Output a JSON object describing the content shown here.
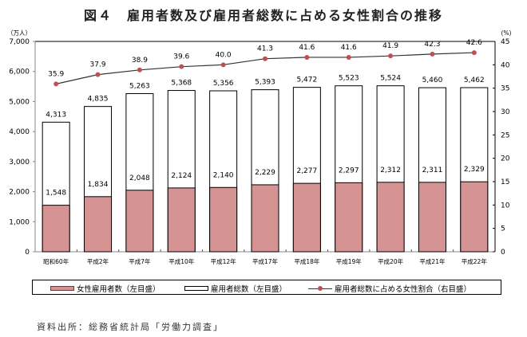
{
  "title": "図４　雇用者数及び雇用者総数に占める女性割合の推移",
  "source": "資料出所：総務省統計局「労働力調査」",
  "chart_data": {
    "type": "bar",
    "title": "図４　雇用者数及び雇用者総数に占める女性割合の推移",
    "categories": [
      "昭和60年",
      "平成2年",
      "平成7年",
      "平成10年",
      "平成12年",
      "平成17年",
      "平成18年",
      "平成19年",
      "平成20年",
      "平成21年",
      "平成22年"
    ],
    "series": [
      {
        "name": "女性雇用者数（左目盛）",
        "type": "bar",
        "axis": "left",
        "color": "#D69393",
        "values": [
          1548,
          1834,
          2048,
          2124,
          2140,
          2229,
          2277,
          2297,
          2312,
          2311,
          2329
        ],
        "labels": [
          "1,548",
          "1,834",
          "2,048",
          "2,124",
          "2,140",
          "2,229",
          "2,277",
          "2,297",
          "2,312",
          "2,311",
          "2,329"
        ]
      },
      {
        "name": "雇用者総数（左目盛）",
        "type": "bar",
        "axis": "left",
        "color": "#FFFFFF",
        "values": [
          4313,
          4835,
          5263,
          5368,
          5356,
          5393,
          5472,
          5523,
          5524,
          5460,
          5462
        ],
        "labels": [
          "4,313",
          "4,835",
          "5,263",
          "5,368",
          "5,356",
          "5,393",
          "5,472",
          "5,523",
          "5,524",
          "5,460",
          "5,462"
        ]
      },
      {
        "name": "雇用者総数に占める女性割合（右目盛）",
        "type": "line",
        "axis": "right",
        "color": "#C0504D",
        "values": [
          35.9,
          37.9,
          38.9,
          39.6,
          40.0,
          41.3,
          41.6,
          41.6,
          41.9,
          42.3,
          42.6
        ],
        "labels": [
          "35.9",
          "37.9",
          "38.9",
          "39.6",
          "40.0",
          "41.3",
          "41.6",
          "41.6",
          "41.9",
          "42.3",
          "42.6"
        ]
      }
    ],
    "y_left": {
      "unit": "（万人）",
      "range": [
        0,
        7000
      ],
      "ticks": [
        0,
        1000,
        2000,
        3000,
        4000,
        5000,
        6000,
        7000
      ],
      "tick_labels": [
        "0",
        "1,000",
        "2,000",
        "3,000",
        "4,000",
        "5,000",
        "6,000",
        "7,000"
      ]
    },
    "y_right": {
      "unit": "(%)",
      "range": [
        0,
        45
      ],
      "ticks": [
        0,
        5,
        10,
        15,
        20,
        25,
        30,
        35,
        40,
        45
      ],
      "tick_labels": [
        "0",
        "5",
        "10",
        "15",
        "20",
        "25",
        "30",
        "35",
        "40",
        "45"
      ]
    },
    "xlabel": "",
    "grid": false,
    "legend_position": "bottom"
  }
}
